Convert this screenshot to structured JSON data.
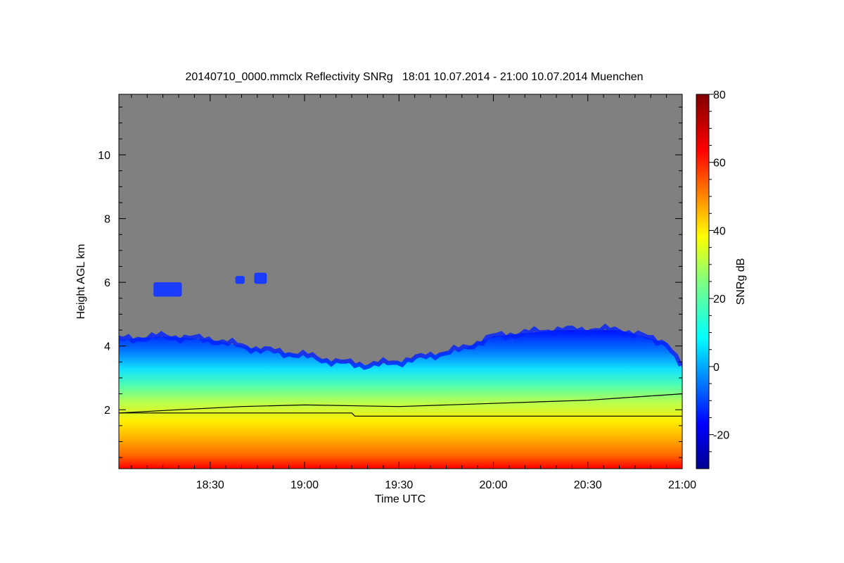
{
  "chart_data": {
    "type": "heatmap",
    "title": "20140710_0000.mmclx Reflectivity SNRg   18:01 10.07.2014 - 21:00 10.07.2014 Muenchen",
    "xlabel": "Time UTC",
    "ylabel": "Height AGL km",
    "xlim": [
      "18:01",
      "21:00"
    ],
    "ylim": [
      0.15,
      11.9
    ],
    "x_ticks": [
      "18:30",
      "19:00",
      "19:30",
      "20:00",
      "20:30",
      "21:00"
    ],
    "y_ticks": [
      "2",
      "4",
      "6",
      "8",
      "10"
    ],
    "colorbar": {
      "label": "SNRg dB",
      "range": [
        -30,
        80
      ],
      "ticks": [
        "-20",
        "0",
        "20",
        "40",
        "60",
        "80"
      ]
    },
    "background_color": "#808080",
    "echo_top_km": [
      {
        "t": "18:01",
        "h": 4.2
      },
      {
        "t": "18:15",
        "h": 4.3
      },
      {
        "t": "18:30",
        "h": 4.2
      },
      {
        "t": "18:45",
        "h": 3.9
      },
      {
        "t": "19:00",
        "h": 3.7
      },
      {
        "t": "19:10",
        "h": 3.5
      },
      {
        "t": "19:20",
        "h": 3.4
      },
      {
        "t": "19:30",
        "h": 3.5
      },
      {
        "t": "19:40",
        "h": 3.7
      },
      {
        "t": "19:50",
        "h": 3.9
      },
      {
        "t": "20:00",
        "h": 4.3
      },
      {
        "t": "20:20",
        "h": 4.5
      },
      {
        "t": "20:40",
        "h": 4.5
      },
      {
        "t": "20:55",
        "h": 4.1
      },
      {
        "t": "21:00",
        "h": 3.3
      }
    ],
    "lines": [
      {
        "points": [
          {
            "t": "18:01",
            "h": 1.9
          },
          {
            "t": "18:20",
            "h": 2.0
          },
          {
            "t": "18:40",
            "h": 2.1
          },
          {
            "t": "19:00",
            "h": 2.15
          },
          {
            "t": "19:30",
            "h": 2.1
          },
          {
            "t": "20:00",
            "h": 2.2
          },
          {
            "t": "20:15",
            "h": 2.25
          },
          {
            "t": "20:30",
            "h": 2.3
          },
          {
            "t": "20:45",
            "h": 2.4
          },
          {
            "t": "21:00",
            "h": 2.5
          }
        ]
      },
      {
        "points": [
          {
            "t": "18:01",
            "h": 1.9
          },
          {
            "t": "19:15",
            "h": 1.9
          },
          {
            "t": "19:16",
            "h": 1.8
          },
          {
            "t": "21:00",
            "h": 1.8
          }
        ]
      }
    ],
    "cloud_patches": [
      {
        "t_start": "18:12",
        "t_end": "18:21",
        "h_bottom": 5.55,
        "h_top": 6.0
      },
      {
        "t_start": "18:38",
        "t_end": "18:41",
        "h_bottom": 5.95,
        "h_top": 6.2
      },
      {
        "t_start": "18:44",
        "t_end": "18:48",
        "h_bottom": 5.95,
        "h_top": 6.3
      }
    ]
  }
}
